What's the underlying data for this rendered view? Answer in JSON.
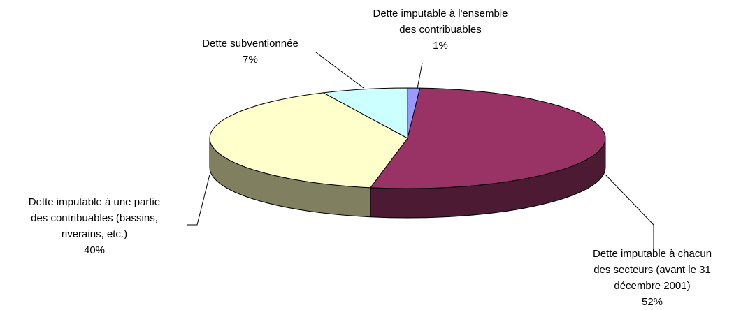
{
  "chart_data": {
    "type": "pie",
    "style": "3d",
    "categories": [
      [
        "Dette imputable à l'ensemble",
        "des contribuables"
      ],
      [
        "Dette imputable à chacun",
        "des secteurs (avant le 31",
        "décembre 2001)"
      ],
      [
        "Dette imputable à une partie",
        "des contribuables (bassins,",
        "riverains, etc.)"
      ],
      [
        "Dette subventionnée"
      ]
    ],
    "values": [
      1,
      52,
      40,
      7
    ],
    "value_labels": [
      "1%",
      "52%",
      "40%",
      "7%"
    ],
    "colors": [
      "#9999ff",
      "#993366",
      "#ffffcc",
      "#ccffff"
    ],
    "side_colors": [
      "#4d4d80",
      "#4d1a33",
      "#808060",
      "#668080"
    ]
  }
}
